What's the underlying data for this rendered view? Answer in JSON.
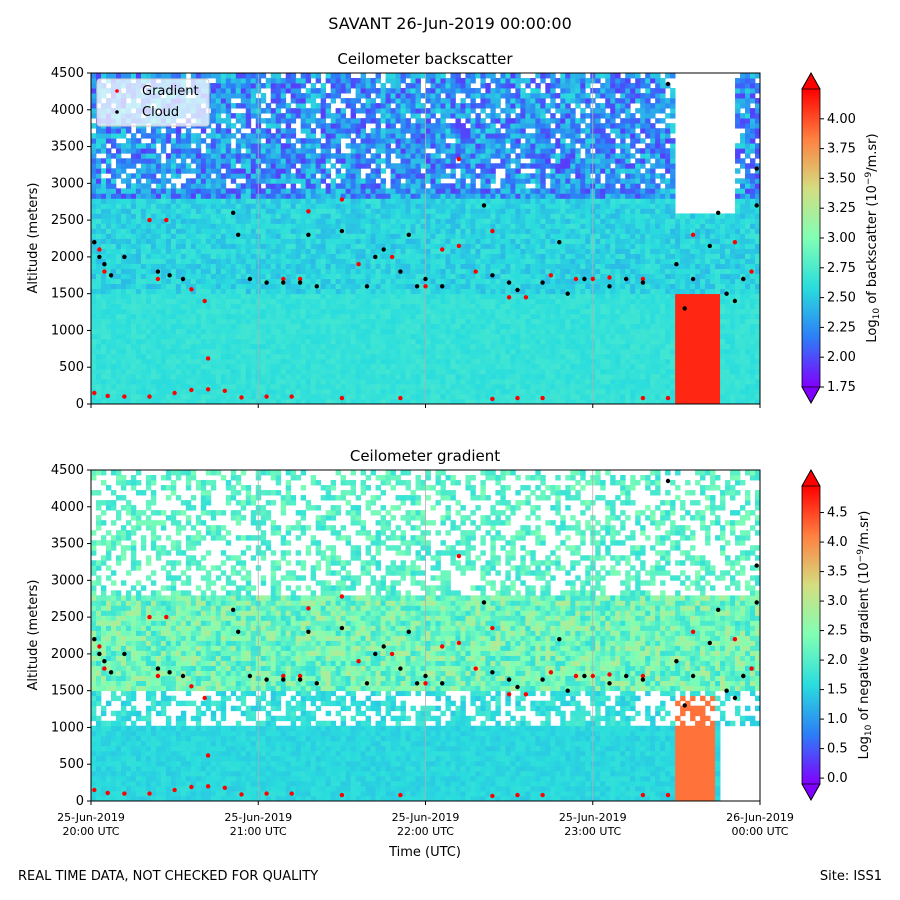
{
  "figure": {
    "suptitle": "SAVANT 26-Jun-2019 00:00:00",
    "footer_left": "REAL TIME DATA, NOT CHECKED FOR QUALITY",
    "footer_right": "Site: ISS1",
    "colormap": [
      "#8000ff",
      "#2c7ef7",
      "#2adddd",
      "#80ffb4",
      "#d4dd80",
      "#ff8040",
      "#ff0000"
    ],
    "gradient_marker_color": "#ff0000",
    "cloud_marker_color": "#000000"
  },
  "chart_data": [
    {
      "type": "heatmap",
      "title": "Ceilometer backscatter",
      "ylabel": "Altitude (meters)",
      "xlabel": "",
      "ylim": [
        0,
        4500
      ],
      "yticks": [
        "0",
        "500",
        "1000",
        "1500",
        "2000",
        "2500",
        "3000",
        "3500",
        "4000",
        "4500"
      ],
      "xticks": [
        "",
        "",
        "",
        "",
        ""
      ],
      "x_range": [
        "25-Jun-2019 20:00 UTC",
        "26-Jun-2019 00:00 UTC"
      ],
      "grid": "vertical lines at hourly ticks",
      "legend": {
        "placement": "top-left",
        "entries": [
          "Gradient",
          "Cloud"
        ]
      },
      "colorbar": {
        "label": "Log10 of backscatter (10^-9/m.sr)",
        "range": [
          1.75,
          4.25
        ],
        "ticks": [
          "1.75",
          "2.00",
          "2.25",
          "2.50",
          "2.75",
          "3.00",
          "3.25",
          "3.50",
          "3.75",
          "4.00"
        ]
      },
      "series": [
        {
          "name": "Gradient",
          "points": [
            [
              20.02,
              150
            ],
            [
              20.1,
              110
            ],
            [
              20.2,
              100
            ],
            [
              20.35,
              100
            ],
            [
              20.5,
              150
            ],
            [
              20.6,
              190
            ],
            [
              20.7,
              200
            ],
            [
              20.8,
              180
            ],
            [
              20.9,
              90
            ],
            [
              21.05,
              100
            ],
            [
              21.2,
              100
            ],
            [
              21.5,
              80
            ],
            [
              21.85,
              80
            ],
            [
              22.4,
              70
            ],
            [
              22.55,
              80
            ],
            [
              22.7,
              80
            ],
            [
              23.3,
              80
            ],
            [
              23.45,
              80
            ],
            [
              20.35,
              2500
            ],
            [
              20.45,
              2500
            ],
            [
              20.6,
              1560
            ],
            [
              20.68,
              1400
            ],
            [
              20.7,
              620
            ],
            [
              21.5,
              2780
            ],
            [
              21.3,
              2620
            ],
            [
              22.0,
              1600
            ],
            [
              22.1,
              2100
            ],
            [
              22.2,
              2150
            ],
            [
              22.2,
              3330
            ],
            [
              22.4,
              2350
            ],
            [
              22.5,
              1450
            ],
            [
              22.6,
              1450
            ],
            [
              22.75,
              1750
            ],
            [
              22.9,
              1700
            ],
            [
              23.1,
              1720
            ],
            [
              23.3,
              1700
            ],
            [
              23.6,
              2300
            ],
            [
              23.85,
              2200
            ],
            [
              23.9,
              1700
            ],
            [
              23.95,
              1800
            ],
            [
              20.05,
              2100
            ],
            [
              20.08,
              1800
            ],
            [
              20.4,
              1700
            ],
            [
              21.15,
              1700
            ],
            [
              21.25,
              1700
            ],
            [
              21.6,
              1900
            ],
            [
              21.8,
              2000
            ],
            [
              22.3,
              1800
            ],
            [
              23.0,
              1700
            ]
          ]
        },
        {
          "name": "Cloud",
          "points": [
            [
              20.02,
              2200
            ],
            [
              20.05,
              2000
            ],
            [
              20.08,
              1900
            ],
            [
              20.12,
              1750
            ],
            [
              20.2,
              2000
            ],
            [
              20.4,
              1800
            ],
            [
              20.47,
              1750
            ],
            [
              20.55,
              1700
            ],
            [
              20.85,
              2600
            ],
            [
              20.88,
              2300
            ],
            [
              20.95,
              1700
            ],
            [
              21.05,
              1650
            ],
            [
              21.15,
              1650
            ],
            [
              21.25,
              1650
            ],
            [
              21.3,
              2300
            ],
            [
              21.35,
              1600
            ],
            [
              21.5,
              2350
            ],
            [
              21.65,
              1600
            ],
            [
              21.7,
              2000
            ],
            [
              21.75,
              2100
            ],
            [
              21.85,
              1800
            ],
            [
              21.9,
              2300
            ],
            [
              21.95,
              1600
            ],
            [
              22.0,
              1700
            ],
            [
              22.1,
              1600
            ],
            [
              22.35,
              2700
            ],
            [
              22.4,
              1750
            ],
            [
              22.5,
              1650
            ],
            [
              22.55,
              1550
            ],
            [
              22.7,
              1650
            ],
            [
              22.8,
              2200
            ],
            [
              22.85,
              1500
            ],
            [
              22.95,
              1700
            ],
            [
              23.1,
              1600
            ],
            [
              23.2,
              1700
            ],
            [
              23.3,
              1650
            ],
            [
              23.5,
              1900
            ],
            [
              23.45,
              4350
            ],
            [
              23.55,
              1300
            ],
            [
              23.6,
              1700
            ],
            [
              23.7,
              2150
            ],
            [
              23.75,
              2600
            ],
            [
              23.8,
              1500
            ],
            [
              23.85,
              1400
            ],
            [
              23.9,
              1700
            ],
            [
              23.98,
              3200
            ],
            [
              23.98,
              2700
            ]
          ]
        }
      ]
    },
    {
      "type": "heatmap",
      "title": "Ceilometer gradient",
      "ylabel": "Altitude (meters)",
      "xlabel": "Time (UTC)",
      "ylim": [
        0,
        4500
      ],
      "yticks": [
        "0",
        "500",
        "1000",
        "1500",
        "2000",
        "2500",
        "3000",
        "3500",
        "4000",
        "4500"
      ],
      "xticks": [
        {
          "date": "25-Jun-2019",
          "time": "20:00 UTC"
        },
        {
          "date": "25-Jun-2019",
          "time": "21:00 UTC"
        },
        {
          "date": "25-Jun-2019",
          "time": "22:00 UTC"
        },
        {
          "date": "25-Jun-2019",
          "time": "23:00 UTC"
        },
        {
          "date": "26-Jun-2019",
          "time": "00:00 UTC"
        }
      ],
      "grid": "vertical lines at hourly ticks",
      "colorbar": {
        "label": "Log10 of negative gradient (10^-9/m.sr)",
        "range": [
          -0.1,
          4.95
        ],
        "ticks": [
          "0.0",
          "0.5",
          "1.0",
          "1.5",
          "2.0",
          "2.5",
          "3.0",
          "3.5",
          "4.0",
          "4.5"
        ]
      },
      "series": [
        {
          "name": "Gradient",
          "points": [
            [
              20.02,
              150
            ],
            [
              20.1,
              110
            ],
            [
              20.2,
              100
            ],
            [
              20.35,
              100
            ],
            [
              20.5,
              150
            ],
            [
              20.6,
              190
            ],
            [
              20.7,
              200
            ],
            [
              20.8,
              180
            ],
            [
              20.9,
              90
            ],
            [
              21.05,
              100
            ],
            [
              21.2,
              100
            ],
            [
              21.5,
              80
            ],
            [
              21.85,
              80
            ],
            [
              22.4,
              70
            ],
            [
              22.55,
              80
            ],
            [
              22.7,
              80
            ],
            [
              23.3,
              80
            ],
            [
              23.45,
              80
            ],
            [
              20.35,
              2500
            ],
            [
              20.45,
              2500
            ],
            [
              20.6,
              1560
            ],
            [
              20.68,
              1400
            ],
            [
              20.7,
              620
            ],
            [
              21.5,
              2780
            ],
            [
              21.3,
              2620
            ],
            [
              22.0,
              1600
            ],
            [
              22.1,
              2100
            ],
            [
              22.2,
              2150
            ],
            [
              22.2,
              3330
            ],
            [
              22.4,
              2350
            ],
            [
              22.5,
              1450
            ],
            [
              22.6,
              1450
            ],
            [
              22.75,
              1750
            ],
            [
              22.9,
              1700
            ],
            [
              23.1,
              1720
            ],
            [
              23.3,
              1700
            ],
            [
              23.6,
              2300
            ],
            [
              23.85,
              2200
            ],
            [
              23.9,
              1700
            ],
            [
              23.95,
              1800
            ],
            [
              20.05,
              2100
            ],
            [
              20.08,
              1800
            ],
            [
              20.4,
              1700
            ],
            [
              21.15,
              1700
            ],
            [
              21.25,
              1700
            ],
            [
              21.6,
              1900
            ],
            [
              21.8,
              2000
            ],
            [
              22.3,
              1800
            ],
            [
              23.0,
              1700
            ]
          ]
        },
        {
          "name": "Cloud",
          "points": [
            [
              20.02,
              2200
            ],
            [
              20.05,
              2000
            ],
            [
              20.08,
              1900
            ],
            [
              20.12,
              1750
            ],
            [
              20.2,
              2000
            ],
            [
              20.4,
              1800
            ],
            [
              20.47,
              1750
            ],
            [
              20.55,
              1700
            ],
            [
              20.85,
              2600
            ],
            [
              20.88,
              2300
            ],
            [
              20.95,
              1700
            ],
            [
              21.05,
              1650
            ],
            [
              21.15,
              1650
            ],
            [
              21.25,
              1650
            ],
            [
              21.3,
              2300
            ],
            [
              21.35,
              1600
            ],
            [
              21.5,
              2350
            ],
            [
              21.65,
              1600
            ],
            [
              21.7,
              2000
            ],
            [
              21.75,
              2100
            ],
            [
              21.85,
              1800
            ],
            [
              21.9,
              2300
            ],
            [
              21.95,
              1600
            ],
            [
              22.0,
              1700
            ],
            [
              22.1,
              1600
            ],
            [
              22.35,
              2700
            ],
            [
              22.4,
              1750
            ],
            [
              22.5,
              1650
            ],
            [
              22.55,
              1550
            ],
            [
              22.7,
              1650
            ],
            [
              22.8,
              2200
            ],
            [
              22.85,
              1500
            ],
            [
              22.95,
              1700
            ],
            [
              23.1,
              1600
            ],
            [
              23.2,
              1700
            ],
            [
              23.3,
              1650
            ],
            [
              23.5,
              1900
            ],
            [
              23.45,
              4350
            ],
            [
              23.55,
              1300
            ],
            [
              23.6,
              1700
            ],
            [
              23.7,
              2150
            ],
            [
              23.75,
              2600
            ],
            [
              23.8,
              1500
            ],
            [
              23.85,
              1400
            ],
            [
              23.9,
              1700
            ],
            [
              23.98,
              3200
            ],
            [
              23.98,
              2700
            ]
          ]
        }
      ]
    }
  ]
}
